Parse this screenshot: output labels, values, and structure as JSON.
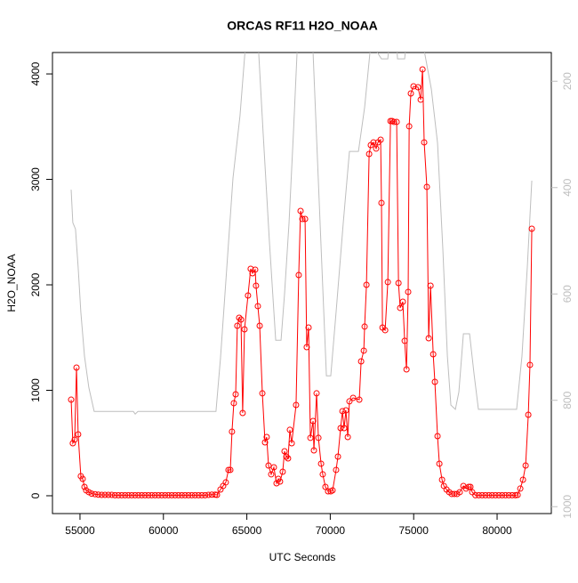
{
  "chart_data": {
    "type": "line",
    "title": "ORCAS RF11 H2O_NOAA",
    "x_label": "UTC Seconds",
    "y_label": "H2O_NOAA",
    "xlim": [
      53350,
      83250
    ],
    "xticks": [
      55000,
      60000,
      65000,
      70000,
      75000,
      80000
    ],
    "ylim": [
      -169,
      4203
    ],
    "yticks": [
      0,
      1000,
      2000,
      3000,
      4000
    ],
    "y2lim": [
      1013,
      146
    ],
    "y2ticks": [
      200,
      400,
      600,
      800,
      1000
    ],
    "series": [
      {
        "color": "#ff0000",
        "markers": true,
        "x": [
          54470,
          54570,
          54680,
          54790,
          54890,
          55050,
          55160,
          55270,
          55370,
          55530,
          55700,
          55900,
          56100,
          56300,
          56500,
          56700,
          56900,
          57100,
          57300,
          57500,
          57700,
          57900,
          58100,
          58300,
          58500,
          58700,
          58900,
          59100,
          59300,
          59500,
          59700,
          59900,
          60100,
          60300,
          60500,
          60700,
          60900,
          61100,
          61300,
          61500,
          61700,
          61900,
          62100,
          62300,
          62500,
          62700,
          62900,
          63100,
          63210,
          63420,
          63580,
          63740,
          63900,
          64010,
          64110,
          64220,
          64330,
          64430,
          64540,
          64650,
          64750,
          64860,
          65070,
          65230,
          65340,
          65500,
          65550,
          65660,
          65770,
          65930,
          66090,
          66190,
          66300,
          66460,
          66620,
          66780,
          66890,
          66990,
          67150,
          67260,
          67370,
          67470,
          67580,
          67690,
          67950,
          68110,
          68220,
          68330,
          68490,
          68590,
          68700,
          68810,
          68970,
          69020,
          69180,
          69290,
          69450,
          69550,
          69710,
          69870,
          70030,
          70140,
          70350,
          70460,
          70620,
          70730,
          70830,
          70940,
          71050,
          71150,
          71370,
          71740,
          71850,
          72010,
          72060,
          72170,
          72330,
          72430,
          72590,
          72750,
          72860,
          73020,
          73070,
          73130,
          73290,
          73450,
          73610,
          73710,
          73820,
          73980,
          74090,
          74190,
          74350,
          74460,
          74570,
          74670,
          74730,
          74830,
          74990,
          75260,
          75420,
          75530,
          75630,
          75790,
          75900,
          76010,
          76170,
          76270,
          76430,
          76540,
          76700,
          76810,
          76970,
          77130,
          77280,
          77440,
          77600,
          77760,
          77980,
          78140,
          78300,
          78400,
          78510,
          78700,
          78900,
          79100,
          79300,
          79500,
          79700,
          79900,
          80100,
          80300,
          80500,
          80700,
          80900,
          81100,
          81230,
          81390,
          81550,
          81710,
          81870,
          81970,
          82080
        ],
        "values": [
          911,
          498,
          532,
          1215,
          582,
          186,
          160,
          84,
          51,
          34,
          20,
          15,
          10,
          8,
          8,
          8,
          8,
          5,
          5,
          5,
          5,
          5,
          5,
          5,
          5,
          5,
          5,
          5,
          5,
          5,
          5,
          5,
          5,
          5,
          5,
          5,
          5,
          5,
          5,
          5,
          5,
          5,
          5,
          5,
          5,
          8,
          10,
          10,
          8,
          59,
          93,
          127,
          245,
          245,
          608,
          878,
          962,
          1612,
          1688,
          1671,
          785,
          1578,
          1899,
          2152,
          2110,
          2144,
          1992,
          1798,
          1612,
          971,
          506,
          557,
          287,
          203,
          270,
          118,
          160,
          135,
          228,
          422,
          371,
          354,
          625,
          498,
          861,
          2093,
          2701,
          2625,
          2625,
          1409,
          1595,
          549,
          709,
          430,
          971,
          549,
          304,
          203,
          84,
          42,
          42,
          51,
          245,
          371,
          641,
          802,
          641,
          810,
          557,
          895,
          928,
          911,
          1274,
          1376,
          1604,
          2000,
          3241,
          3325,
          3351,
          3292,
          3351,
          3376,
          2777,
          1595,
          1570,
          2026,
          3553,
          3553,
          3545,
          3545,
          2017,
          1781,
          1840,
          1469,
          1198,
          1933,
          3503,
          3815,
          3882,
          3874,
          3756,
          4043,
          3351,
          2929,
          1494,
          1992,
          1342,
          1080,
          565,
          304,
          152,
          93,
          59,
          34,
          17,
          17,
          17,
          34,
          93,
          68,
          84,
          84,
          34,
          5,
          5,
          5,
          5,
          5,
          5,
          5,
          5,
          5,
          5,
          5,
          5,
          5,
          8,
          68,
          152,
          287,
          768,
          1241,
          2532
        ]
      },
      {
        "color": "#bebebe",
        "axis": "y2",
        "markers": false,
        "x": [
          54470,
          54570,
          54730,
          54890,
          55050,
          55270,
          55530,
          55850,
          58200,
          58310,
          58470,
          63150,
          63420,
          63800,
          64170,
          64590,
          64900,
          65290,
          65710,
          65980,
          66350,
          66730,
          67050,
          67260,
          67530,
          67790,
          68010,
          68500,
          68970,
          69390,
          69770,
          70030,
          70350,
          70780,
          71150,
          71690,
          72060,
          72380,
          72700,
          73070,
          73450,
          73500,
          74000,
          74030,
          74460,
          74510,
          75500,
          76060,
          76430,
          76750,
          77020,
          77230,
          77500,
          77710,
          77980,
          78350,
          78620,
          78880,
          81170,
          81490,
          81810,
          82080
        ],
        "values": [
          404,
          466,
          478,
          550,
          634,
          717,
          776,
          821,
          821,
          826,
          821,
          821,
          721,
          550,
          382,
          265,
          140,
          115,
          146,
          299,
          500,
          687,
          687,
          600,
          466,
          299,
          146,
          120,
          146,
          466,
          754,
          754,
          634,
          466,
          332,
          332,
          249,
          146,
          140,
          158,
          158,
          140,
          140,
          158,
          158,
          140,
          120,
          215,
          316,
          517,
          717,
          809,
          817,
          784,
          675,
          675,
          751,
          817,
          817,
          717,
          550,
          387
        ]
      }
    ]
  }
}
